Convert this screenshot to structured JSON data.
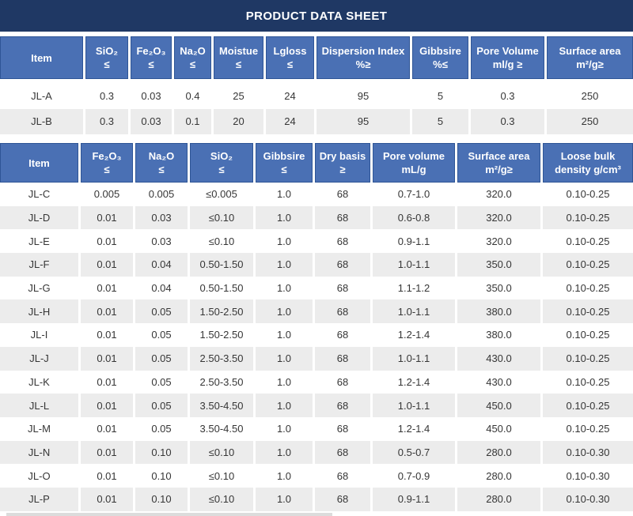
{
  "title": "PRODUCT DATA SHEET",
  "colors": {
    "title_bar": "#1f3864",
    "table_header": "#4a70b4",
    "table_header_border": "#2e5596",
    "alt_row": "#ececec",
    "text": "#363636"
  },
  "table1": {
    "columns": [
      {
        "line1": "Item",
        "line2": ""
      },
      {
        "line1": "SiO₂",
        "line2": "≤"
      },
      {
        "line1": "Fe₂O₃",
        "line2": "≤"
      },
      {
        "line1": "Na₂O",
        "line2": "≤"
      },
      {
        "line1": "Moistue",
        "line2": "≤"
      },
      {
        "line1": "Lgloss",
        "line2": "≤"
      },
      {
        "line1": "Dispersion Index",
        "line2": "%≥"
      },
      {
        "line1": "Gibbsire",
        "line2": "%≤"
      },
      {
        "line1": "Pore Volume",
        "line2": "ml/g ≥"
      },
      {
        "line1": "Surface area",
        "line2": "m²/g≥"
      }
    ],
    "rows": [
      {
        "item": "JL-A",
        "values": [
          "0.3",
          "0.03",
          "0.4",
          "25",
          "24",
          "95",
          "5",
          "0.3",
          "250"
        ]
      },
      {
        "item": "JL-B",
        "values": [
          "0.3",
          "0.03",
          "0.1",
          "20",
          "24",
          "95",
          "5",
          "0.3",
          "250"
        ]
      }
    ]
  },
  "table2": {
    "columns": [
      {
        "line1": "Item",
        "line2": ""
      },
      {
        "line1": "Fe₂O₃",
        "line2": "≤"
      },
      {
        "line1": "Na₂O",
        "line2": "≤"
      },
      {
        "line1": "SiO₂",
        "line2": "≤"
      },
      {
        "line1": "Gibbsire",
        "line2": "≤"
      },
      {
        "line1": "Dry basis",
        "line2": "≥"
      },
      {
        "line1": "Pore volume",
        "line2": "mL/g"
      },
      {
        "line1": "Surface area",
        "line2": "m²/g≥"
      },
      {
        "line1": "Loose bulk",
        "line2": "density g/cm³"
      }
    ],
    "rows": [
      {
        "item": "JL-C",
        "values": [
          "0.005",
          "0.005",
          "≤0.005",
          "1.0",
          "68",
          "0.7-1.0",
          "320.0",
          "0.10-0.25"
        ]
      },
      {
        "item": "JL-D",
        "values": [
          "0.01",
          "0.03",
          "≤0.10",
          "1.0",
          "68",
          "0.6-0.8",
          "320.0",
          "0.10-0.25"
        ]
      },
      {
        "item": "JL-E",
        "values": [
          "0.01",
          "0.03",
          "≤0.10",
          "1.0",
          "68",
          "0.9-1.1",
          "320.0",
          "0.10-0.25"
        ]
      },
      {
        "item": "JL-F",
        "values": [
          "0.01",
          "0.04",
          "0.50-1.50",
          "1.0",
          "68",
          "1.0-1.1",
          "350.0",
          "0.10-0.25"
        ]
      },
      {
        "item": "JL-G",
        "values": [
          "0.01",
          "0.04",
          "0.50-1.50",
          "1.0",
          "68",
          "1.1-1.2",
          "350.0",
          "0.10-0.25"
        ]
      },
      {
        "item": "JL-H",
        "values": [
          "0.01",
          "0.05",
          "1.50-2.50",
          "1.0",
          "68",
          "1.0-1.1",
          "380.0",
          "0.10-0.25"
        ]
      },
      {
        "item": "JL-I",
        "values": [
          "0.01",
          "0.05",
          "1.50-2.50",
          "1.0",
          "68",
          "1.2-1.4",
          "380.0",
          "0.10-0.25"
        ]
      },
      {
        "item": "JL-J",
        "values": [
          "0.01",
          "0.05",
          "2.50-3.50",
          "1.0",
          "68",
          "1.0-1.1",
          "430.0",
          "0.10-0.25"
        ]
      },
      {
        "item": "JL-K",
        "values": [
          "0.01",
          "0.05",
          "2.50-3.50",
          "1.0",
          "68",
          "1.2-1.4",
          "430.0",
          "0.10-0.25"
        ]
      },
      {
        "item": "JL-L",
        "values": [
          "0.01",
          "0.05",
          "3.50-4.50",
          "1.0",
          "68",
          "1.0-1.1",
          "450.0",
          "0.10-0.25"
        ]
      },
      {
        "item": "JL-M",
        "values": [
          "0.01",
          "0.05",
          "3.50-4.50",
          "1.0",
          "68",
          "1.2-1.4",
          "450.0",
          "0.10-0.25"
        ]
      },
      {
        "item": "JL-N",
        "values": [
          "0.01",
          "0.10",
          "≤0.10",
          "1.0",
          "68",
          "0.5-0.7",
          "280.0",
          "0.10-0.30"
        ]
      },
      {
        "item": "JL-O",
        "values": [
          "0.01",
          "0.10",
          "≤0.10",
          "1.0",
          "68",
          "0.7-0.9",
          "280.0",
          "0.10-0.30"
        ]
      },
      {
        "item": "JL-P",
        "values": [
          "0.01",
          "0.10",
          "≤0.10",
          "1.0",
          "68",
          "0.9-1.1",
          "280.0",
          "0.10-0.30"
        ]
      }
    ]
  }
}
